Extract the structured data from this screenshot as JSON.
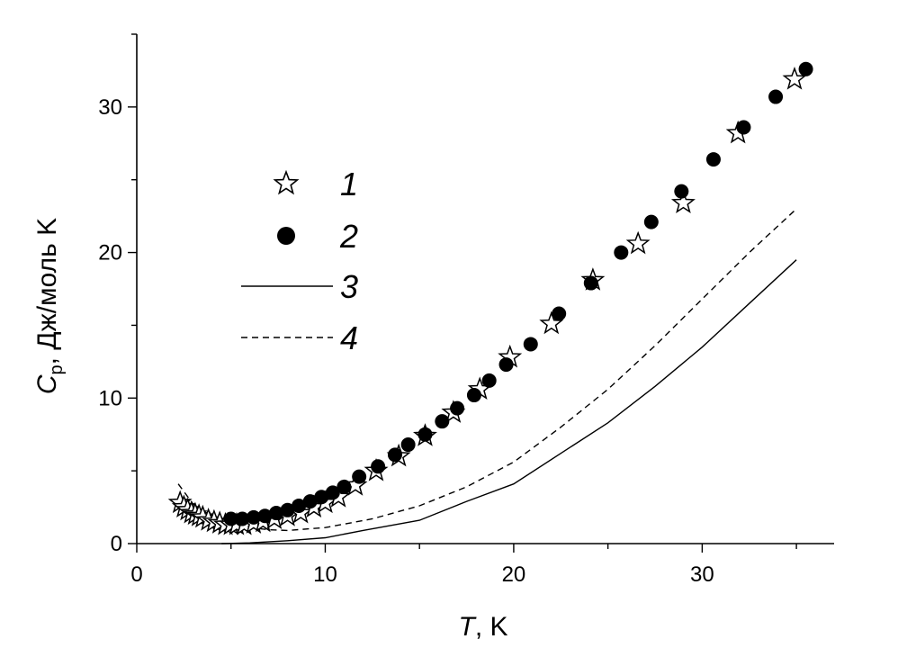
{
  "chart_data": {
    "type": "scatter",
    "title": "",
    "xlabel": {
      "symbol": "T",
      "unit": ", K"
    },
    "ylabel": {
      "symbol": "C",
      "subscript": "p",
      "unit": ", Дж/моль K"
    },
    "xlim": [
      0,
      37
    ],
    "ylim": [
      0,
      35
    ],
    "xticks": [
      0,
      10,
      20,
      30
    ],
    "yticks": [
      0,
      10,
      20,
      30
    ],
    "grid": false,
    "legend_position": "upper-left",
    "series": [
      {
        "name": "1",
        "style": "open-star",
        "color": "#000000",
        "x": [
          2.3,
          2.5,
          2.7,
          2.9,
          3.1,
          3.3,
          3.5,
          3.8,
          4.1,
          4.4,
          4.7,
          5.0,
          5.3,
          5.7,
          6.2,
          6.7,
          7.3,
          8.0,
          8.7,
          9.4,
          10.0,
          10.7,
          11.6,
          12.7,
          13.9,
          15.3,
          16.8,
          18.2,
          19.8,
          22.0,
          24.2,
          26.6,
          29.0,
          31.9,
          34.9
        ],
        "y": [
          2.8,
          2.5,
          2.3,
          2.1,
          2.0,
          1.9,
          1.8,
          1.6,
          1.5,
          1.4,
          1.3,
          1.3,
          1.3,
          1.3,
          1.4,
          1.5,
          1.7,
          1.9,
          2.1,
          2.5,
          2.8,
          3.2,
          4.0,
          5.0,
          6.0,
          7.4,
          9.0,
          10.6,
          12.8,
          15.1,
          18.1,
          20.6,
          23.4,
          28.2,
          31.9
        ]
      },
      {
        "name": "2",
        "style": "filled-circle",
        "color": "#000000",
        "x": [
          5.0,
          5.6,
          6.2,
          6.8,
          7.4,
          8.0,
          8.6,
          9.2,
          9.8,
          10.4,
          11.0,
          11.8,
          12.8,
          13.7,
          14.4,
          15.3,
          16.2,
          17.0,
          17.9,
          18.7,
          19.6,
          20.9,
          22.4,
          24.1,
          25.7,
          27.3,
          28.9,
          30.6,
          32.2,
          33.9,
          35.5
        ],
        "y": [
          1.7,
          1.7,
          1.8,
          1.9,
          2.1,
          2.3,
          2.6,
          2.9,
          3.2,
          3.5,
          3.9,
          4.6,
          5.3,
          6.1,
          6.8,
          7.5,
          8.4,
          9.3,
          10.2,
          11.2,
          12.3,
          13.7,
          15.8,
          17.9,
          20.0,
          22.1,
          24.2,
          26.4,
          28.6,
          30.7,
          32.6
        ]
      },
      {
        "name": "3",
        "style": "solid-line",
        "color": "#000000",
        "x": [
          4.5,
          6,
          8,
          10,
          12,
          15,
          17.5,
          20,
          22.5,
          25,
          27.5,
          30,
          32.5,
          35
        ],
        "y": [
          0.0,
          0.05,
          0.2,
          0.4,
          0.9,
          1.6,
          2.9,
          4.1,
          6.2,
          8.3,
          10.8,
          13.5,
          16.5,
          19.5
        ]
      },
      {
        "name": "4",
        "style": "dashed-line",
        "color": "#000000",
        "x": [
          2.2,
          3,
          4,
          5,
          6,
          7,
          8,
          10,
          12.5,
          15,
          17.5,
          20,
          22.5,
          25,
          27.5,
          30,
          32.5,
          35
        ],
        "y": [
          4.1,
          2.7,
          1.8,
          1.4,
          1.1,
          0.95,
          0.9,
          1.1,
          1.7,
          2.6,
          3.9,
          5.6,
          8.0,
          10.6,
          13.6,
          16.8,
          20.0,
          23.0
        ]
      }
    ]
  }
}
